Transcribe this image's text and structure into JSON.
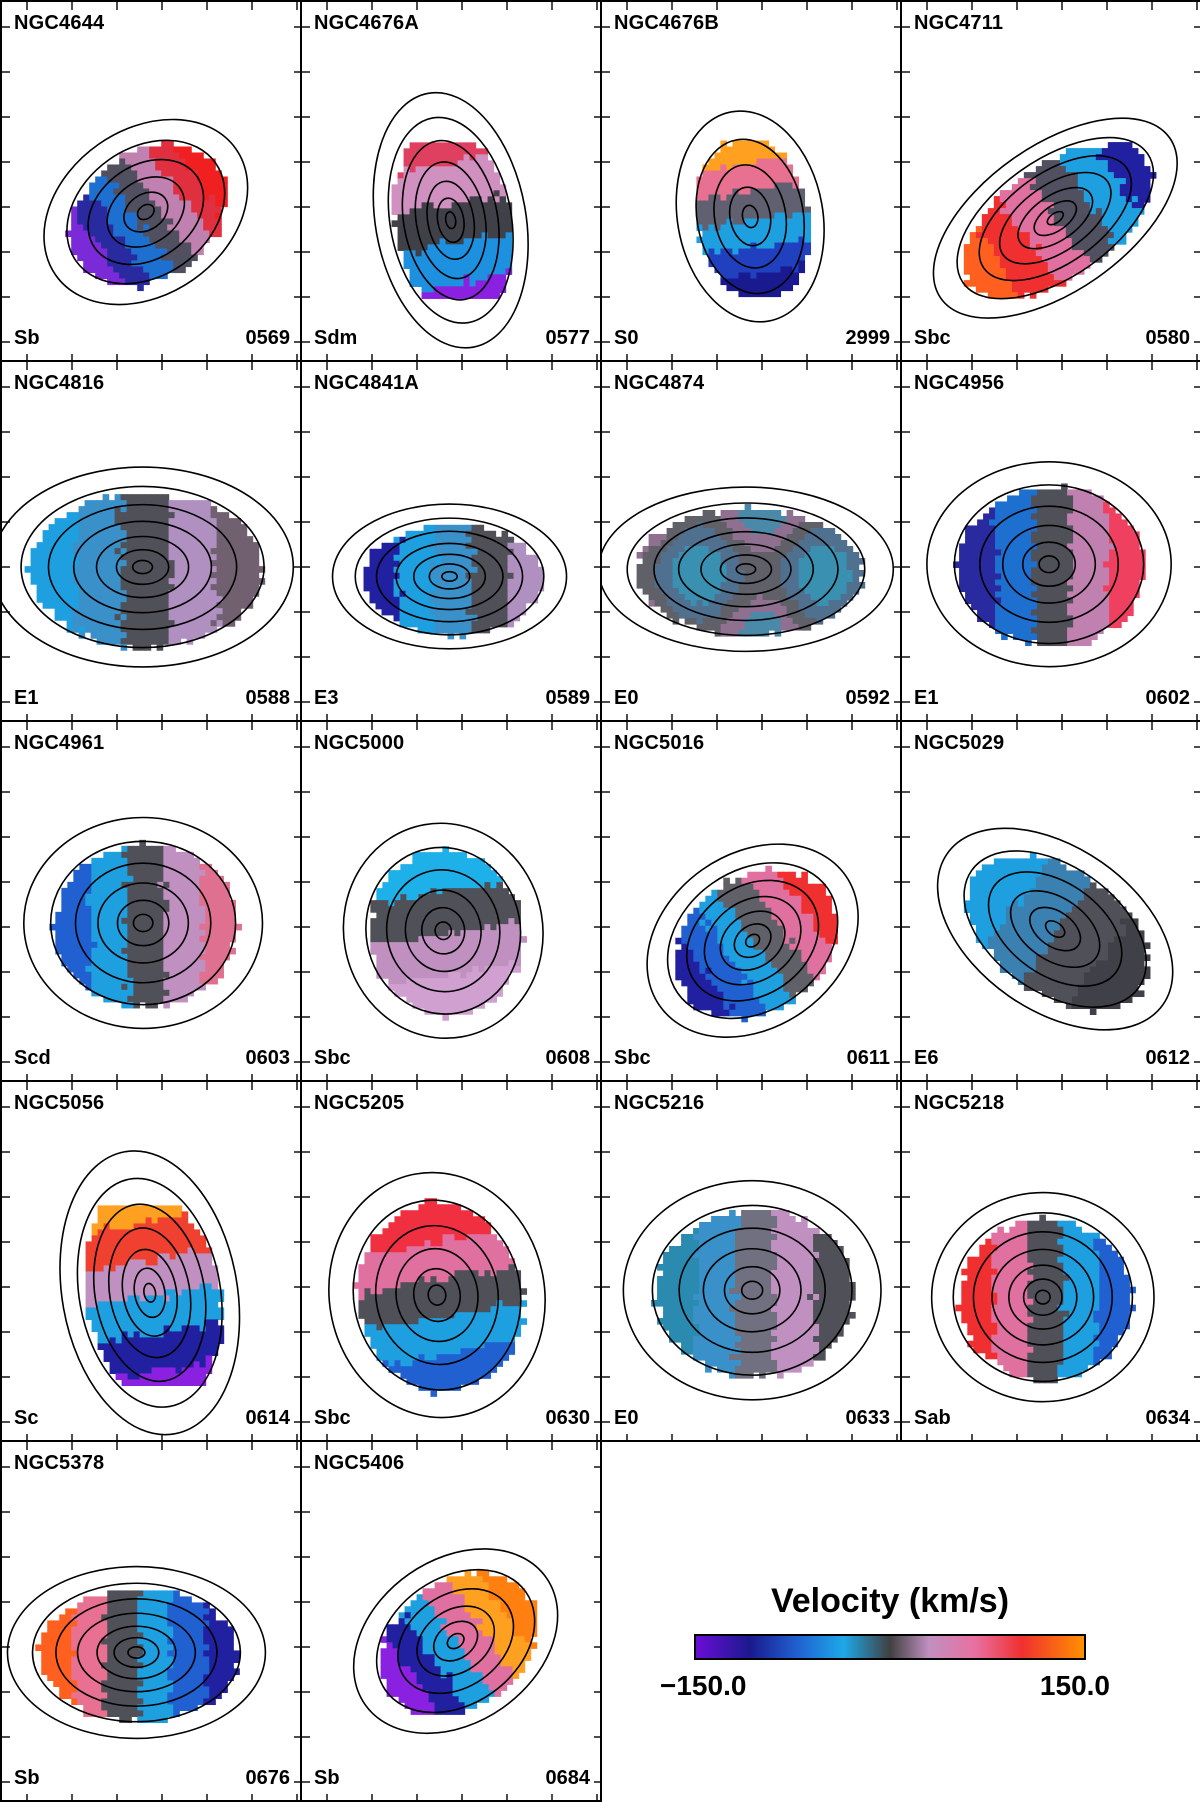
{
  "panels": [
    {
      "name": "NGC4644",
      "type": "Sb",
      "id": "0569",
      "palette": [
        "#7a2ad6",
        "#2a2aa0",
        "#1e70d0",
        "#505060",
        "#c080b0",
        "#e03040",
        "#f02020"
      ],
      "vmap": "diag"
    },
    {
      "name": "NGC4676A",
      "type": "Sdm",
      "id": "0577",
      "palette": [
        "#e04060",
        "#d090c0",
        "#404048",
        "#1e90e0",
        "#8a20e0"
      ],
      "vmap": "vert"
    },
    {
      "name": "NGC4676B",
      "type": "S0",
      "id": "2999",
      "palette": [
        "#ffa020",
        "#e87090",
        "#606070",
        "#1ea0e0",
        "#2040c0",
        "#1a1a90"
      ],
      "vmap": "vert"
    },
    {
      "name": "NGC4711",
      "type": "Sbc",
      "id": "0580",
      "palette": [
        "#ff6020",
        "#f03030",
        "#e070a0",
        "#505060",
        "#1ea0e0",
        "#2020a0"
      ],
      "vmap": "diag"
    },
    {
      "name": "NGC4816",
      "type": "E1",
      "id": "0588",
      "palette": [
        "#1ea0e0",
        "#3a90c8",
        "#505058",
        "#b090c0",
        "#706070"
      ],
      "vmap": "horiz"
    },
    {
      "name": "NGC4841A",
      "type": "E3",
      "id": "0589",
      "palette": [
        "#2020a0",
        "#1ea0e0",
        "#3a90c8",
        "#505058",
        "#b090c0"
      ],
      "vmap": "horiz"
    },
    {
      "name": "NGC4874",
      "type": "E0",
      "id": "0592",
      "palette": [
        "#3a90b0",
        "#507090",
        "#606068",
        "#907090",
        "#4a8aa8"
      ],
      "vmap": "patch"
    },
    {
      "name": "NGC4956",
      "type": "E1",
      "id": "0602",
      "palette": [
        "#2a2aa0",
        "#1e70d0",
        "#505058",
        "#c080b0",
        "#f04060"
      ],
      "vmap": "horiz"
    },
    {
      "name": "NGC4961",
      "type": "Scd",
      "id": "0603",
      "palette": [
        "#2060d0",
        "#1ea0e0",
        "#505058",
        "#c090c0",
        "#e07090"
      ],
      "vmap": "horiz"
    },
    {
      "name": "NGC5000",
      "type": "Sbc",
      "id": "0608",
      "palette": [
        "#1eb0e8",
        "#505058",
        "#c090c0",
        "#d0a0d0"
      ],
      "vmap": "vert"
    },
    {
      "name": "NGC5016",
      "type": "Sbc",
      "id": "0611",
      "palette": [
        "#2020a0",
        "#2060d0",
        "#1ea0e0",
        "#606068",
        "#e070a0",
        "#f03030"
      ],
      "vmap": "diag"
    },
    {
      "name": "NGC5029",
      "type": "E6",
      "id": "0612",
      "palette": [
        "#1ea0e0",
        "#3a80b0",
        "#505058",
        "#404048"
      ],
      "vmap": "diag"
    },
    {
      "name": "NGC5056",
      "type": "Sc",
      "id": "0614",
      "palette": [
        "#ffa020",
        "#f04030",
        "#c090c0",
        "#1ea0e0",
        "#2020a0",
        "#8a20e0"
      ],
      "vmap": "vert"
    },
    {
      "name": "NGC5205",
      "type": "Sbc",
      "id": "0630",
      "palette": [
        "#f03040",
        "#e070a0",
        "#505058",
        "#1ea0e0",
        "#2060d0"
      ],
      "vmap": "vert"
    },
    {
      "name": "NGC5216",
      "type": "E0",
      "id": "0633",
      "palette": [
        "#2a8ab0",
        "#3a90c8",
        "#707080",
        "#c090c0",
        "#505058"
      ],
      "vmap": "horiz"
    },
    {
      "name": "NGC5218",
      "type": "Sab",
      "id": "0634",
      "palette": [
        "#f03030",
        "#e070a0",
        "#505058",
        "#1ea0e0",
        "#2060d0"
      ],
      "vmap": "horiz"
    },
    {
      "name": "NGC5378",
      "type": "Sb",
      "id": "0676",
      "palette": [
        "#ff6020",
        "#e87090",
        "#505058",
        "#1ea0e0",
        "#2060d0",
        "#2020a0"
      ],
      "vmap": "horiz"
    },
    {
      "name": "NGC5406",
      "type": "Sb",
      "id": "0684",
      "palette": [
        "#8a20e0",
        "#2020a0",
        "#1ea0e0",
        "#e070a0",
        "#ffa020",
        "#ff8010"
      ],
      "vmap": "diag"
    }
  ],
  "colorbar": {
    "title": "Velocity (km/s)",
    "min_label": "−150.0",
    "max_label": "150.0"
  }
}
